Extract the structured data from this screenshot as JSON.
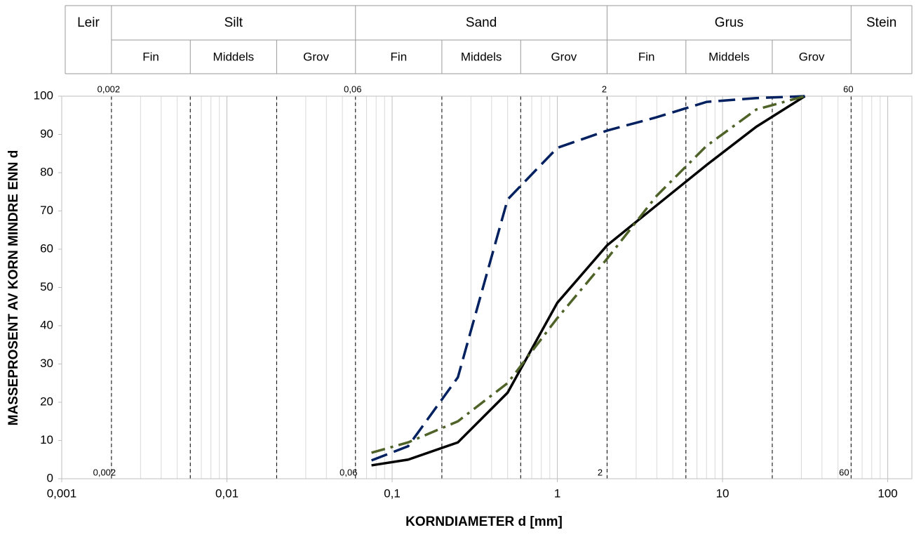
{
  "chart_data": {
    "type": "line",
    "x_label": "KORNDIAMETER d [mm]",
    "y_label": "MASSEPROSENT AV KORN MINDRE ENN d",
    "x_log": true,
    "xlim": [
      0.001,
      140
    ],
    "xticks": [
      {
        "value": 0.001,
        "label": "0,001"
      },
      {
        "value": 0.01,
        "label": "0,01"
      },
      {
        "value": 0.1,
        "label": "0,1"
      },
      1,
      10,
      100
    ],
    "ylim": [
      0,
      100
    ],
    "yticks": [
      0,
      10,
      20,
      30,
      40,
      50,
      60,
      70,
      80,
      90,
      100
    ],
    "minor_grid": true,
    "boundaries": [
      0.002,
      0.006,
      0.02,
      0.06,
      0.2,
      0.6,
      2,
      6,
      20,
      60
    ],
    "boundary_labels": [
      {
        "value": 0.002,
        "label": "0,002"
      },
      {
        "value": 0.06,
        "label": "0,06"
      },
      {
        "value": 2,
        "label": "2"
      },
      {
        "value": 60,
        "label": "60"
      }
    ],
    "header": [
      {
        "label": "Leir"
      },
      {
        "label": "Silt",
        "sub": [
          "Fin",
          "Middels",
          "Grov"
        ]
      },
      {
        "label": "Sand",
        "sub": [
          "Fin",
          "Middels",
          "Grov"
        ]
      },
      {
        "label": "Grus",
        "sub": [
          "Fin",
          "Middels",
          "Grov"
        ]
      },
      {
        "label": "Stein"
      }
    ],
    "x": [
      0.075,
      0.125,
      0.25,
      0.5,
      1,
      2,
      4,
      8,
      16,
      31.5
    ],
    "series": [
      {
        "color": "#000000",
        "dash": "solid",
        "values": [
          3.5,
          5,
          9.5,
          22.5,
          46,
          61,
          71.5,
          82,
          92,
          100
        ]
      },
      {
        "color": "#002060",
        "dash": "dashed",
        "values": [
          4.8,
          8.5,
          26.5,
          73,
          86.5,
          91,
          94.5,
          98.5,
          99.5,
          100
        ]
      },
      {
        "color": "#4f6228",
        "dash": "dashdot",
        "values": [
          6.8,
          9.5,
          15,
          25,
          42,
          57.5,
          74,
          87,
          96.5,
          100
        ]
      }
    ]
  }
}
